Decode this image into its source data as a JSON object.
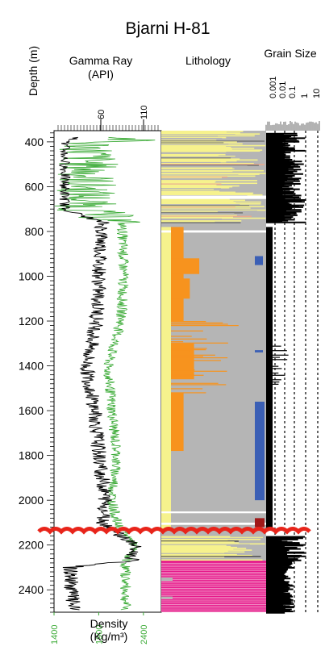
{
  "title": "Bjarni H-81",
  "depth_axis": {
    "label": "Depth (m)",
    "min": 350,
    "max": 2500,
    "ticks": [
      400,
      600,
      800,
      1000,
      1200,
      1400,
      1600,
      1800,
      2000,
      2200,
      2400
    ],
    "tick_labels": [
      "400",
      "600",
      "800",
      "1000",
      "1200",
      "1400",
      "1600",
      "1800",
      "2000",
      "2200",
      "2400"
    ]
  },
  "gamma_track": {
    "label_line1": "Gamma Ray",
    "label_line2": "(API)",
    "scale_ticks": [
      60,
      110
    ],
    "scale_labels": [
      "60",
      "110"
    ],
    "gamma_color": "#000000",
    "density_color": "#3aaa35"
  },
  "density_axis": {
    "label_line1": "Density",
    "label_line2": "(Kg/m³)",
    "ticks": [
      1400,
      1900,
      2400
    ],
    "tick_labels": [
      "1400",
      "1900",
      "2400"
    ],
    "min": 1400,
    "max": 2600
  },
  "lithology_track": {
    "label": "Lithology"
  },
  "grain_size_track": {
    "label": "Grain Size",
    "scale_labels": [
      "0.001",
      "0.01",
      "0.1",
      "1",
      "10"
    ]
  },
  "unconformity_depth": 2140,
  "colors": {
    "shale": "#b5b5b5",
    "sand": "#f7931e",
    "light_sand": "#f6f28d",
    "limestone": "#3b5fb5",
    "red_bed": "#a01818",
    "volcanic": "#e6198b",
    "unconformity": "#e8241a"
  },
  "chart_data": {
    "type": "well-log",
    "x_units": "API / Kg/m³",
    "density_profile": [
      {
        "depth": 400,
        "density": 1800
      },
      {
        "depth": 700,
        "density": 1750
      },
      {
        "depth": 760,
        "density": 2160
      },
      {
        "depth": 1000,
        "density": 2180
      },
      {
        "depth": 1200,
        "density": 2150
      },
      {
        "depth": 1400,
        "density": 2000
      },
      {
        "depth": 1600,
        "density": 2050
      },
      {
        "depth": 1800,
        "density": 2100
      },
      {
        "depth": 2000,
        "density": 2050
      },
      {
        "depth": 2100,
        "density": 2100
      },
      {
        "depth": 2200,
        "density": 2300
      },
      {
        "depth": 2280,
        "density": 2200
      }
    ],
    "gamma_profile": [
      {
        "depth": 400,
        "gamma": 30
      },
      {
        "depth": 700,
        "gamma": 30
      },
      {
        "depth": 760,
        "gamma": 65
      },
      {
        "depth": 1000,
        "gamma": 62
      },
      {
        "depth": 1200,
        "gamma": 60
      },
      {
        "depth": 1400,
        "gamma": 50
      },
      {
        "depth": 1600,
        "gamma": 58
      },
      {
        "depth": 1800,
        "gamma": 62
      },
      {
        "depth": 2000,
        "gamma": 68
      },
      {
        "depth": 2100,
        "gamma": 66
      },
      {
        "depth": 2200,
        "gamma": 95
      },
      {
        "depth": 2270,
        "gamma": 92
      },
      {
        "depth": 2300,
        "gamma": 35
      },
      {
        "depth": 2500,
        "gamma": 38
      }
    ],
    "lithology_intervals": [
      {
        "top": 350,
        "base": 440,
        "lith": "light_sand",
        "extent": 0.65
      },
      {
        "top": 440,
        "base": 470,
        "lith": "shale",
        "extent": 0.9
      },
      {
        "top": 470,
        "base": 520,
        "lith": "light_sand",
        "extent": 0.75
      },
      {
        "top": 520,
        "base": 560,
        "lith": "shale",
        "extent": 0.92
      },
      {
        "top": 560,
        "base": 620,
        "lith": "light_sand",
        "extent": 0.6
      },
      {
        "top": 620,
        "base": 660,
        "lith": "shale",
        "extent": 0.7
      },
      {
        "top": 660,
        "base": 700,
        "lith": "light_sand",
        "extent": 0.7
      },
      {
        "top": 700,
        "base": 760,
        "lith": "light_sand",
        "extent": 0.85
      },
      {
        "top": 760,
        "base": 810,
        "lith": "shale",
        "extent": 1.0
      },
      {
        "top": 810,
        "base": 1200,
        "lith": "shale",
        "extent": 1.0
      },
      {
        "top": 1200,
        "base": 1560,
        "lith": "shale",
        "extent": 1.0
      },
      {
        "top": 1560,
        "base": 2060,
        "lith": "shale",
        "extent": 1.0
      },
      {
        "top": 2060,
        "base": 2100,
        "lith": "shale",
        "extent": 1.0
      },
      {
        "top": 2100,
        "base": 2130,
        "lith": "shale",
        "extent": 1.0
      },
      {
        "top": 2160,
        "base": 2270,
        "lith": "light_sand",
        "extent": 0.8
      },
      {
        "top": 2270,
        "base": 2500,
        "lith": "volcanic",
        "extent": 1.0
      }
    ],
    "sand_intervals": [
      {
        "top": 780,
        "base": 1200,
        "extent": 0.12
      },
      {
        "top": 920,
        "base": 990,
        "extent": 0.27
      },
      {
        "top": 1010,
        "base": 1100,
        "extent": 0.18
      },
      {
        "top": 1300,
        "base": 1460,
        "extent": 0.22
      },
      {
        "top": 1520,
        "base": 1780,
        "extent": 0.12
      }
    ],
    "limestone_intervals": [
      {
        "top": 1560,
        "base": 2000
      },
      {
        "top": 910,
        "base": 950
      },
      {
        "top": 1330,
        "base": 1340
      }
    ],
    "red_bed_intervals": [
      {
        "top": 2080,
        "base": 2120
      }
    ]
  }
}
